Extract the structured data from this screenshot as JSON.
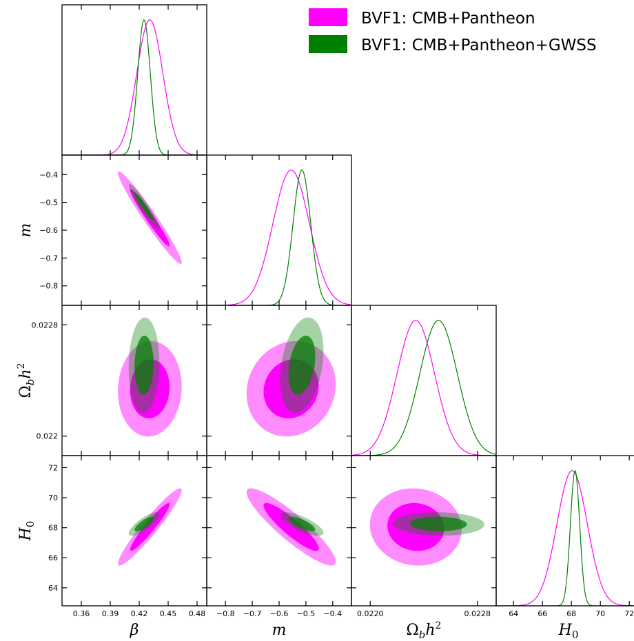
{
  "legend": [
    {
      "name": "BVF1: CMB+Pantheon",
      "color": "#ff00ff"
    },
    {
      "name": "BVF1: CMB+Pantheon+GWSS",
      "color": "#008000"
    }
  ],
  "chart_data": {
    "type": "triangle",
    "parameters": [
      {
        "key": "beta",
        "label": "β",
        "range": [
          0.34,
          0.49
        ],
        "ticks": [
          0.36,
          0.39,
          0.42,
          0.45,
          0.48
        ],
        "tick_labels": [
          "0.36",
          "0.39",
          "0.42",
          "0.45",
          "0.48"
        ]
      },
      {
        "key": "m",
        "label": "m",
        "range": [
          -0.87,
          -0.33
        ],
        "ticks": [
          -0.8,
          -0.7,
          -0.6,
          -0.5,
          -0.4
        ],
        "tick_labels": [
          "−0.8",
          "−0.7",
          "−0.6",
          "−0.5",
          "−0.4"
        ]
      },
      {
        "key": "omega_b_h2",
        "label": "Ωbh²",
        "label_parts": [
          "Ω",
          "b",
          "h",
          "2"
        ],
        "range": [
          0.02186,
          0.02294
        ],
        "ticks": [
          0.022,
          0.0228
        ],
        "tick_labels_x": [
          "0.0220",
          "0.0228"
        ],
        "tick_labels_y": [
          "0.022",
          "0.0228"
        ]
      },
      {
        "key": "H0",
        "label": "H0",
        "label_parts": [
          "H",
          "0"
        ],
        "range": [
          62.8,
          72.8
        ],
        "ticks": [
          64,
          66,
          68,
          70,
          72
        ],
        "tick_labels": [
          "64",
          "66",
          "68",
          "70",
          "72"
        ]
      }
    ],
    "series": [
      {
        "name": "BVF1: CMB+Pantheon",
        "color": "#ff00ff",
        "mean": [
          0.431,
          -0.555,
          0.02234,
          68.05
        ],
        "sigma": [
          0.0135,
          0.068,
          0.00014,
          1.05
        ],
        "corr": [
          [
            1,
            -0.97,
            0.05,
            0.95
          ],
          [
            -0.97,
            1,
            0.1,
            -0.9
          ],
          [
            0.05,
            0.1,
            1,
            -0.06
          ],
          [
            0.95,
            -0.9,
            -0.06,
            1
          ]
        ]
      },
      {
        "name": "BVF1: CMB+Pantheon+GWSS",
        "color": "#008000",
        "mean": [
          0.425,
          -0.515,
          0.02251,
          68.25
        ],
        "sigma": [
          0.0065,
          0.033,
          0.00014,
          0.32
        ],
        "corr": [
          [
            1,
            -0.95,
            0.05,
            0.8
          ],
          [
            -0.95,
            1,
            0.3,
            -0.75
          ],
          [
            0.05,
            0.3,
            1,
            -0.05
          ],
          [
            0.8,
            -0.75,
            -0.05,
            1
          ]
        ]
      }
    ],
    "contours": [
      "68%",
      "95%"
    ],
    "grid": false,
    "legend_position": "top-right"
  }
}
